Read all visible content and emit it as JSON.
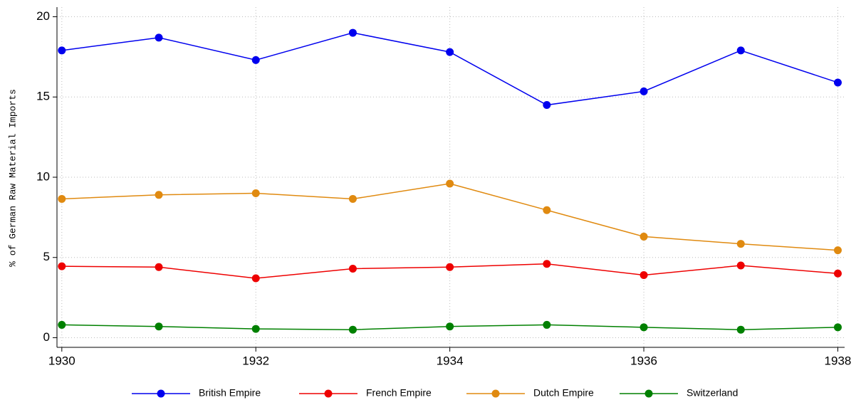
{
  "chart_data": {
    "type": "line",
    "y_label": "% of German Raw Material Imports",
    "x": [
      1930,
      1931,
      1932,
      1933,
      1934,
      1935,
      1936,
      1937,
      1938
    ],
    "series": [
      {
        "name": "British Empire",
        "color": "#0000ee",
        "values": [
          17.9,
          18.7,
          17.3,
          19.0,
          17.8,
          14.5,
          15.35,
          17.9,
          15.9
        ]
      },
      {
        "name": "French Empire",
        "color": "#ee0000",
        "values": [
          4.45,
          4.4,
          3.7,
          4.3,
          4.4,
          4.6,
          3.9,
          4.5,
          4.0
        ]
      },
      {
        "name": "Dutch Empire",
        "color": "#e08a10",
        "values": [
          8.65,
          8.9,
          9.0,
          8.65,
          9.6,
          7.95,
          6.3,
          5.85,
          5.45
        ]
      },
      {
        "name": "Switzerland",
        "color": "#008000",
        "values": [
          0.8,
          0.7,
          0.55,
          0.5,
          0.7,
          0.8,
          0.65,
          0.5,
          0.65
        ]
      }
    ],
    "xlim": [
      1929.95,
      1938.07
    ],
    "xticks": [
      1930,
      1932,
      1934,
      1936,
      1938
    ],
    "ylim": [
      -0.6,
      20.6
    ],
    "yticks": [
      0,
      5,
      10,
      15,
      20
    ],
    "grid": true,
    "legend": "bottom"
  }
}
